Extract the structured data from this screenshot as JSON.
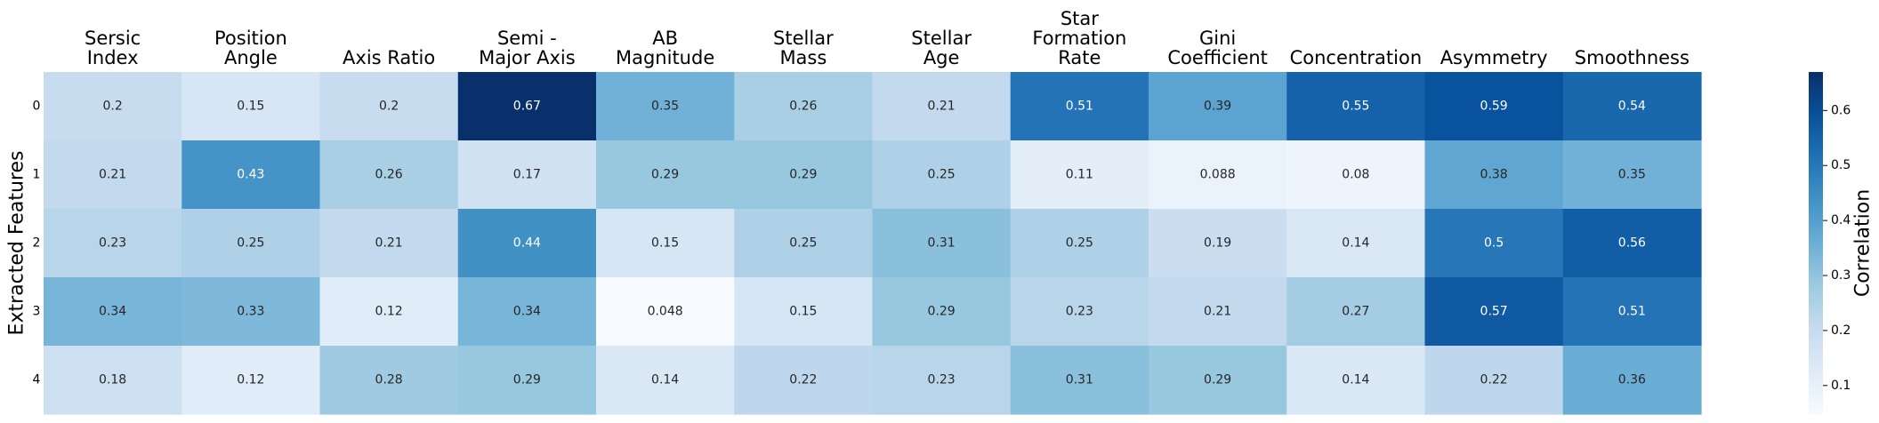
{
  "chart_data": {
    "type": "heatmap",
    "title": "",
    "xlabel": "",
    "ylabel": "Extracted Features",
    "columns": [
      [
        "Sersic",
        "Index"
      ],
      [
        "Position",
        "Angle"
      ],
      [
        "Axis Ratio"
      ],
      [
        "Semi -",
        "Major Axis"
      ],
      [
        "AB",
        "Magnitude"
      ],
      [
        "Stellar",
        "Mass"
      ],
      [
        "Stellar",
        "Age"
      ],
      [
        "Star",
        "Formation",
        "Rate"
      ],
      [
        "Gini",
        "Coefficient"
      ],
      [
        "Concentration"
      ],
      [
        "Asymmetry"
      ],
      [
        "Smoothness"
      ]
    ],
    "rows": [
      "0",
      "1",
      "2",
      "3",
      "4"
    ],
    "values": [
      [
        0.2,
        0.15,
        0.2,
        0.67,
        0.35,
        0.26,
        0.21,
        0.51,
        0.39,
        0.55,
        0.59,
        0.54
      ],
      [
        0.21,
        0.43,
        0.26,
        0.17,
        0.29,
        0.29,
        0.25,
        0.11,
        0.088,
        0.08,
        0.38,
        0.35
      ],
      [
        0.23,
        0.25,
        0.21,
        0.44,
        0.15,
        0.25,
        0.31,
        0.25,
        0.19,
        0.14,
        0.5,
        0.56
      ],
      [
        0.34,
        0.33,
        0.12,
        0.34,
        0.048,
        0.15,
        0.29,
        0.23,
        0.21,
        0.27,
        0.57,
        0.51
      ],
      [
        0.18,
        0.12,
        0.28,
        0.29,
        0.14,
        0.22,
        0.23,
        0.31,
        0.29,
        0.14,
        0.22,
        0.36
      ]
    ],
    "colormap": "Blues",
    "colorbar": {
      "label": "Correlation",
      "range": [
        0.048,
        0.67
      ],
      "ticks": [
        0.1,
        0.2,
        0.3,
        0.4,
        0.5,
        0.6
      ],
      "tick_labels": [
        "0.1",
        "0.2",
        "0.3",
        "0.4",
        "0.5",
        "0.6"
      ]
    },
    "annotations": true,
    "column_labels_position": "top",
    "grid": false
  }
}
